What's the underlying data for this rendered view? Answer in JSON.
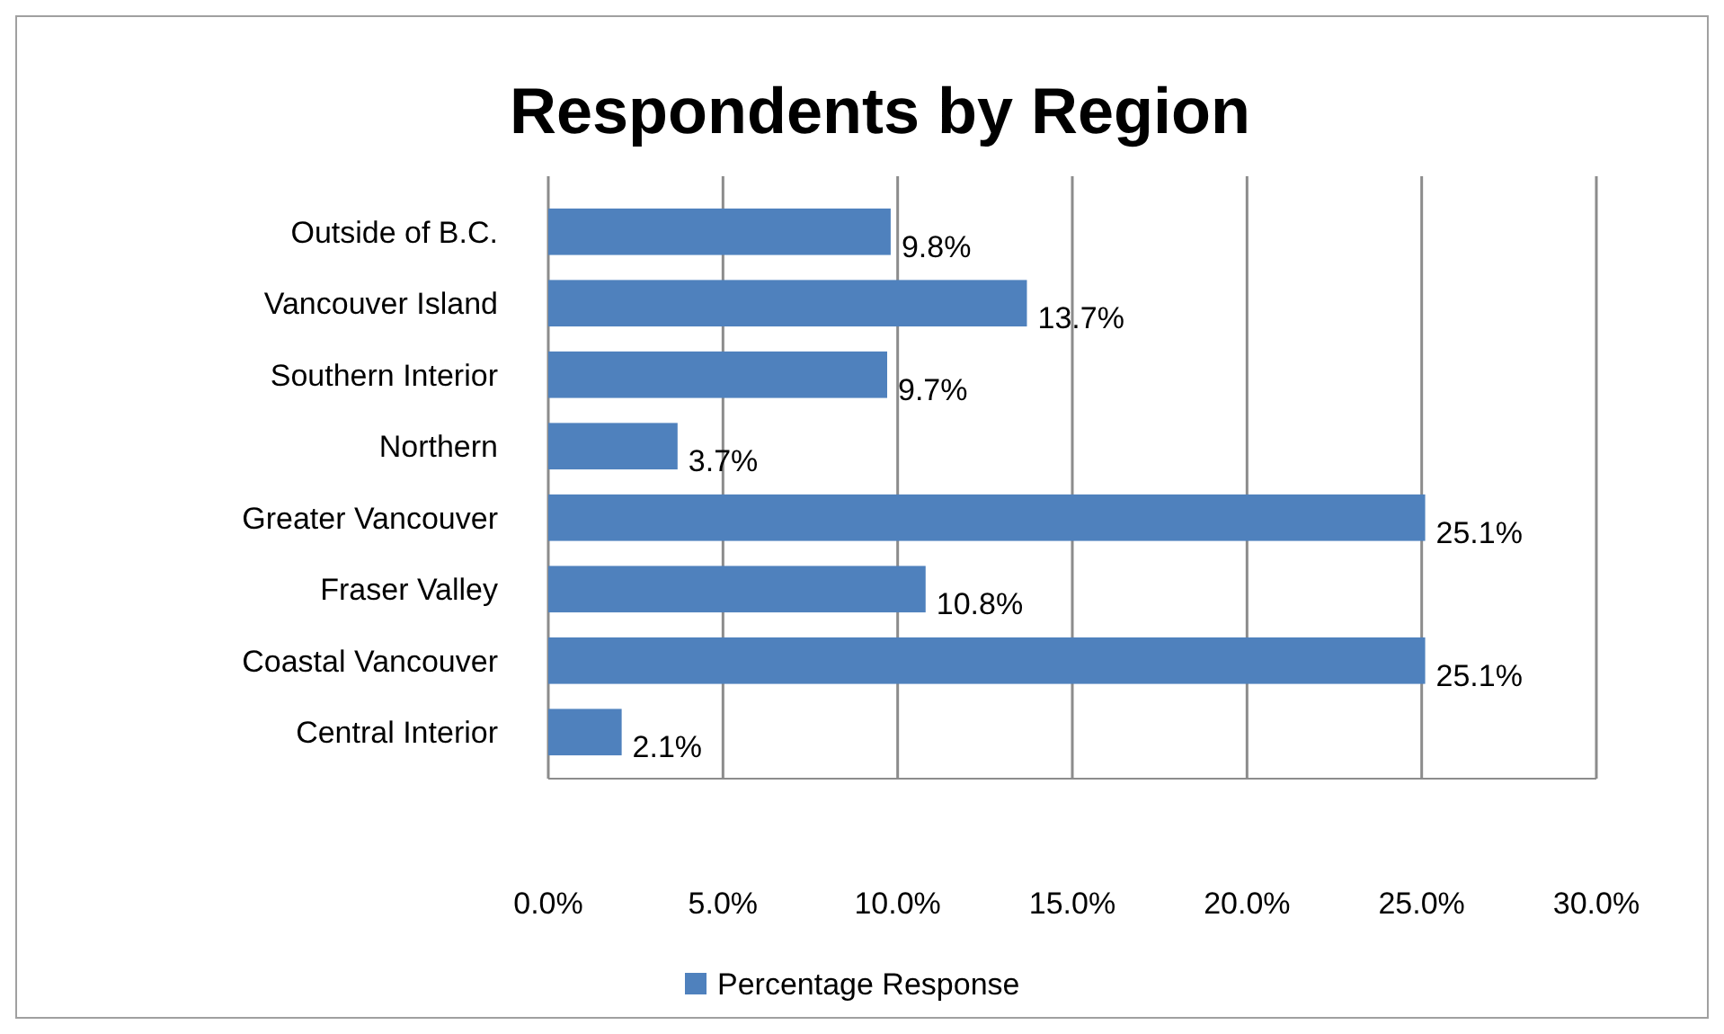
{
  "chart_data": {
    "type": "bar",
    "title": "Respondents by Region",
    "orientation": "horizontal",
    "categories": [
      "Outside of B.C.",
      "Vancouver Island",
      "Southern Interior",
      "Northern",
      "Greater Vancouver",
      "Fraser Valley",
      "Coastal Vancouver",
      "Central Interior"
    ],
    "series": [
      {
        "name": "Percentage Response",
        "color": "#4f81bd",
        "values": [
          9.8,
          13.7,
          9.7,
          3.7,
          25.1,
          10.8,
          25.1,
          2.1
        ],
        "value_labels": [
          "9.8%",
          "13.7%",
          "9.7%",
          "3.7%",
          "25.1%",
          "10.8%",
          "25.1%",
          "2.1%"
        ]
      }
    ],
    "xlim": [
      0,
      30
    ],
    "xticks": [
      {
        "value": 0,
        "label": "0.0%"
      },
      {
        "value": 5,
        "label": "5.0%"
      },
      {
        "value": 10,
        "label": "10.0%"
      },
      {
        "value": 15,
        "label": "15.0%"
      },
      {
        "value": 20,
        "label": "20.0%"
      },
      {
        "value": 25,
        "label": "25.0%"
      },
      {
        "value": 30,
        "label": "30.0%"
      }
    ],
    "grid": "x",
    "legend": "bottom"
  }
}
